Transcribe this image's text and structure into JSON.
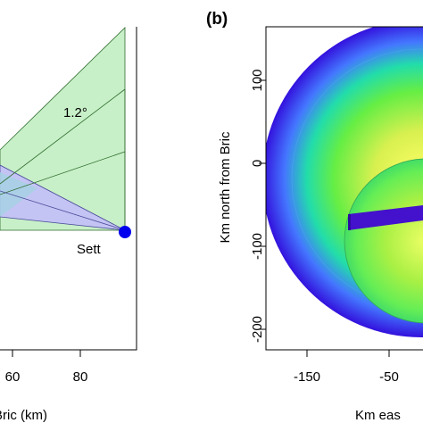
{
  "chart_data": [
    {
      "type": "diagram",
      "panel_label": "",
      "xlabel": "Bric (km)",
      "ylabel": "",
      "xticks": [
        60,
        80
      ],
      "annotations": [
        {
          "name": "beam-angle-label",
          "text": "1.2°"
        },
        {
          "name": "station-label",
          "text": "Sett"
        }
      ],
      "fills": {
        "green": "#c8f0c8",
        "blue": "#c4c4f4",
        "overlap": "#a8d0e6",
        "station": "#0000ee"
      }
    },
    {
      "type": "heatmap",
      "panel_label": "(b)",
      "xlabel": "Km  eas",
      "ylabel": "Km  north from Bric",
      "yticks": [
        100,
        0,
        -100,
        -200
      ],
      "xticks": [
        -150,
        -50
      ],
      "ylim": [
        -225,
        165
      ],
      "xlim": [
        -178,
        -18
      ]
    }
  ]
}
